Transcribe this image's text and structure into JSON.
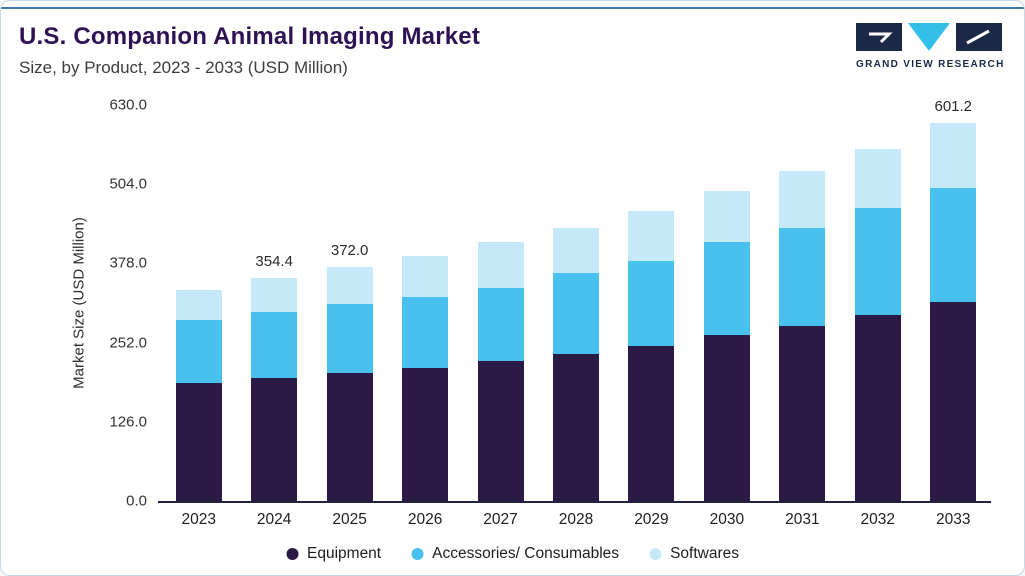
{
  "header": {
    "title": "U.S. Companion Animal Imaging Market",
    "subtitle": "Size, by Product, 2023 - 2033 (USD Million)",
    "logo_text": "GRAND VIEW RESEARCH"
  },
  "chart_data": {
    "type": "bar",
    "stacked": true,
    "title": "U.S. Companion Animal Imaging Market Size, by Product, 2023 - 2033 (USD Million)",
    "xlabel": "",
    "ylabel": "Market Size (USD Million)",
    "ylim": [
      0,
      630
    ],
    "yticks": [
      "0.0",
      "126.0",
      "252.0",
      "378.0",
      "504.0",
      "630.0"
    ],
    "grid": false,
    "legend_position": "bottom",
    "categories": [
      "2023",
      "2024",
      "2025",
      "2026",
      "2027",
      "2028",
      "2029",
      "2030",
      "2031",
      "2032",
      "2033"
    ],
    "series": [
      {
        "name": "Equipment",
        "color": "#2B1946",
        "values": [
          188,
          196,
          203,
          211,
          222,
          234,
          246,
          264,
          278,
          296,
          317
        ]
      },
      {
        "name": "Accessories/ Consumables",
        "color": "#49C1EF",
        "values": [
          100,
          104,
          110,
          114,
          117,
          128,
          136,
          148,
          157,
          170,
          181
        ]
      },
      {
        "name": "Softwares",
        "color": "#C6E9F9",
        "values": [
          48,
          54.4,
          59,
          65,
          73,
          73,
          80,
          81,
          90,
          94,
          103.2
        ]
      }
    ],
    "totals": [
      336,
      354.4,
      372,
      390,
      412,
      435,
      462,
      493,
      525,
      560,
      601.2
    ],
    "annotations": {
      "2024": "354.4",
      "2025": "372.0",
      "2033": "601.2"
    }
  },
  "colors": {
    "accent_line": "#3e79ad",
    "axis_line": "#232140",
    "title": "#2e1254",
    "logo_navy": "#1b2946",
    "logo_cyan": "#33bfe7"
  }
}
